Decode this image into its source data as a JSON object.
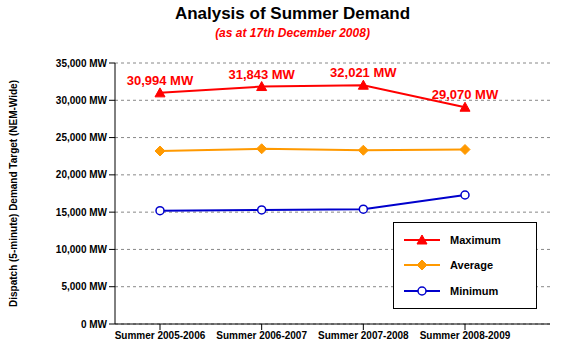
{
  "chart_data": {
    "type": "line",
    "title": "Analysis of Summer Demand",
    "subtitle": "(as at 17th December 2008)",
    "y_label": "Dispatch (5-minute) Demand Target (NEM-Wide)",
    "categories": [
      "Summer 2005-2006",
      "Summer 2006-2007",
      "Summer 2007-2008",
      "Summer 2008-2009"
    ],
    "ylim": [
      0,
      35000
    ],
    "yticks": [
      {
        "value": 0,
        "label": "0 MW"
      },
      {
        "value": 5000,
        "label": "5,000 MW"
      },
      {
        "value": 10000,
        "label": "10,000 MW"
      },
      {
        "value": 15000,
        "label": "15,000 MW"
      },
      {
        "value": 20000,
        "label": "20,000 MW"
      },
      {
        "value": 25000,
        "label": "25,000 MW"
      },
      {
        "value": 30000,
        "label": "30,000 MW"
      },
      {
        "value": 35000,
        "label": "35,000 MW"
      }
    ],
    "grid": true,
    "legend": "lower right",
    "series": [
      {
        "name": "Maximum",
        "color": "#ff0000",
        "marker": "triangle",
        "values": [
          30994,
          31843,
          32021,
          29070
        ],
        "data_labels": true,
        "value_labels": [
          "30,994 MW",
          "31,843 MW",
          "32,021 MW",
          "29,070 MW"
        ]
      },
      {
        "name": "Average",
        "color": "#ff9900",
        "marker": "diamond",
        "values": [
          23200,
          23500,
          23300,
          23400
        ]
      },
      {
        "name": "Minimum",
        "color": "#0000cc",
        "marker": "circle",
        "values": [
          15200,
          15300,
          15400,
          17300
        ]
      }
    ]
  }
}
